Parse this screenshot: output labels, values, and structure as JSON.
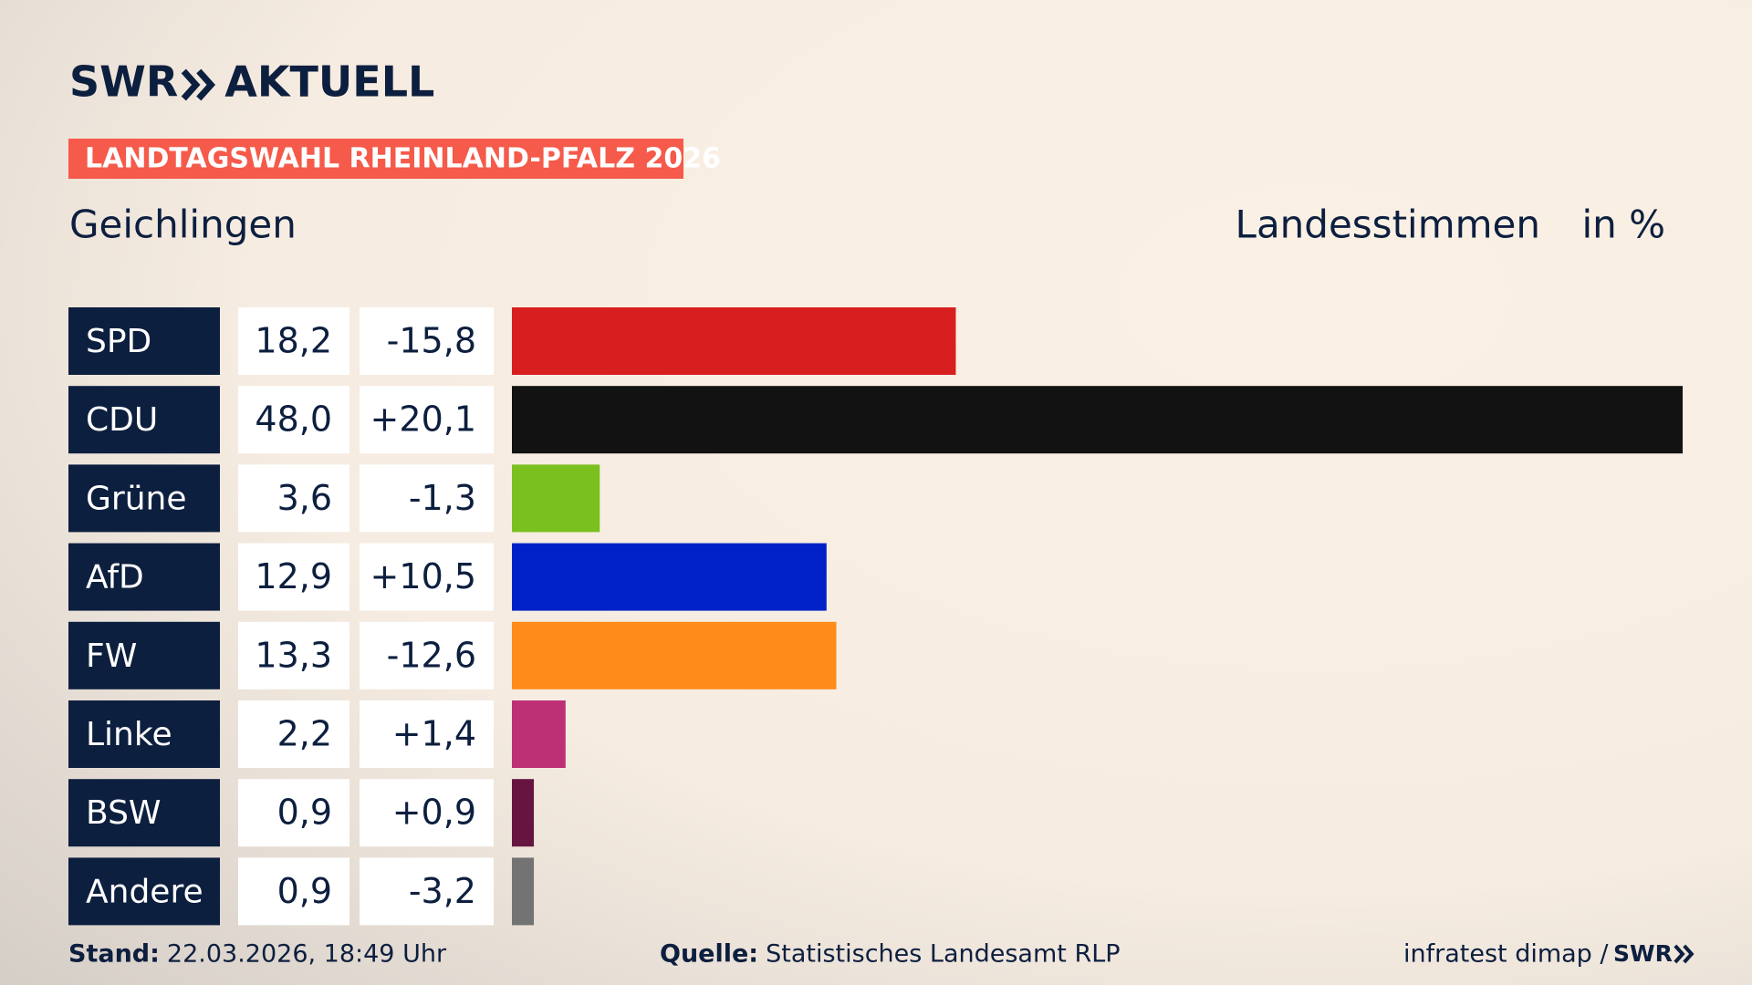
{
  "chart_data": {
    "type": "bar",
    "logo": "SWR",
    "logo_suffix": "AKTUELL",
    "banner": "LANDTAGSWAHL RHEINLAND-PFALZ 2026",
    "title": "Geichlingen",
    "subtitle": "Landesstimmen",
    "unit": "in %",
    "categories": [
      "SPD",
      "CDU",
      "Grüne",
      "AfD",
      "FW",
      "Linke",
      "BSW",
      "Andere"
    ],
    "values": [
      18.2,
      48.0,
      3.6,
      12.9,
      13.3,
      2.2,
      0.9,
      0.9
    ],
    "value_labels": [
      "18,2",
      "48,0",
      "3,6",
      "12,9",
      "13,3",
      "2,2",
      "0,9",
      "0,9"
    ],
    "changes": [
      -15.8,
      20.1,
      -1.3,
      10.5,
      -12.6,
      1.4,
      0.9,
      -3.2
    ],
    "change_labels": [
      "-15,8",
      "+20,1",
      "-1,3",
      "+10,5",
      "-12,6",
      "+1,4",
      "+0,9",
      "-3,2"
    ],
    "colors": [
      "#d81f1f",
      "#121212",
      "#7ac01f",
      "#0021c8",
      "#ff8c1a",
      "#be3075",
      "#661541",
      "#737373"
    ],
    "footer": {
      "stand_label": "Stand:",
      "stand": "22.03.2026, 18:49 Uhr",
      "source_label": "Quelle:",
      "source": "Statistisches Landesamt RLP",
      "credit": "infratest dimap /",
      "credit_logo": "SWR"
    }
  }
}
